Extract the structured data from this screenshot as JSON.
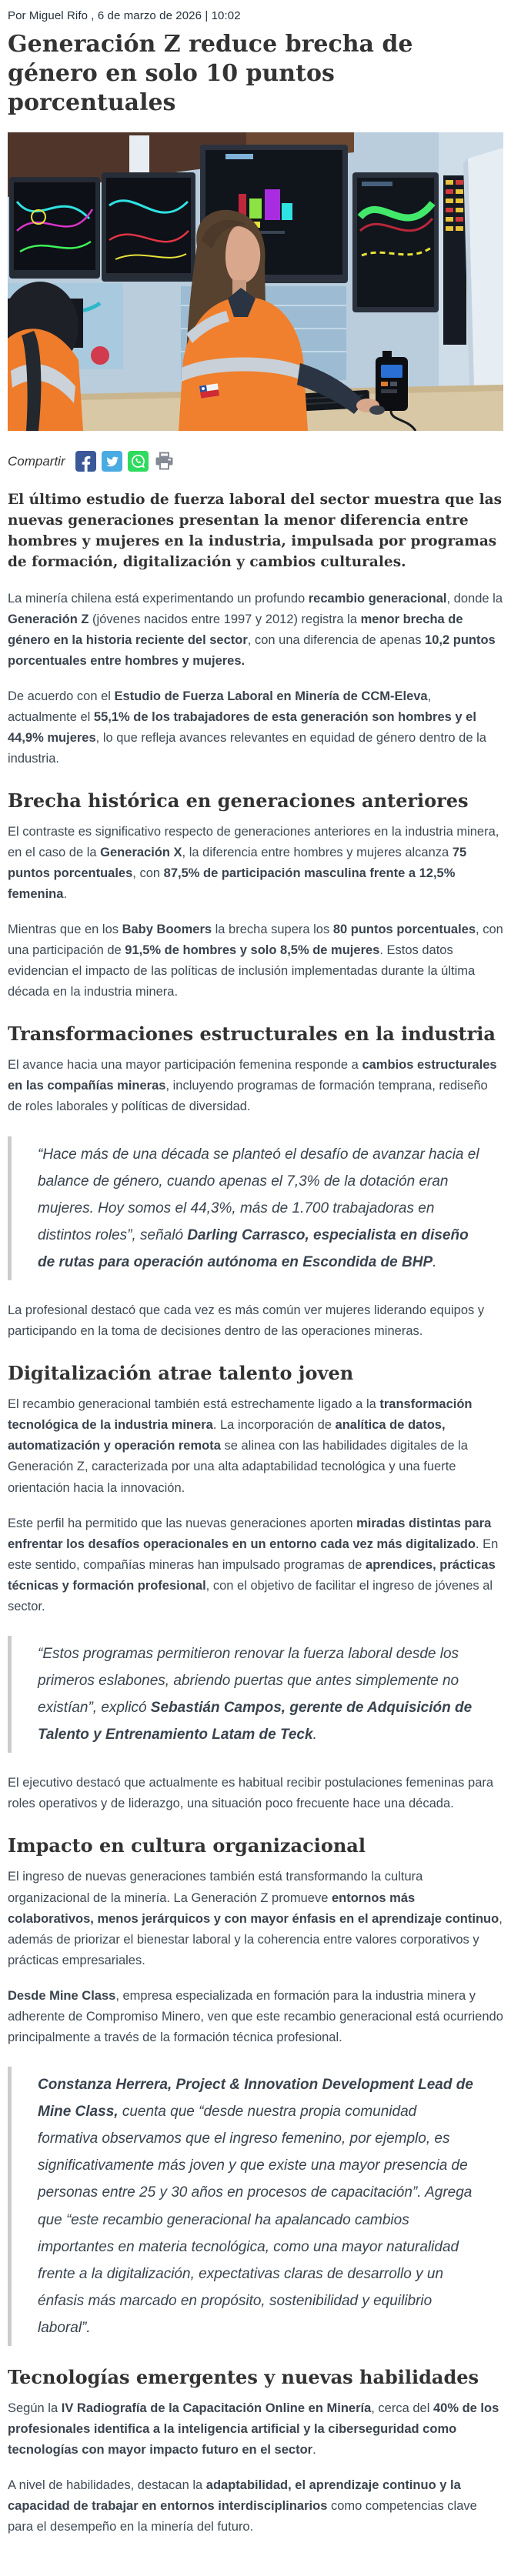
{
  "meta": {
    "byline": "Por Miguel Rifo , 6 de marzo de 2026 | 10:02"
  },
  "share": {
    "label": "Compartir",
    "icons": [
      {
        "name": "facebook",
        "color": "#3b5998"
      },
      {
        "name": "twitter",
        "color": "#4aabe2"
      },
      {
        "name": "whatsapp",
        "color": "#2fdb5e"
      },
      {
        "name": "print",
        "color": "#848a94"
      }
    ]
  },
  "article": {
    "headline": "Generación Z reduce brecha de género en solo 10 puntos porcentuales",
    "hero_image": {
      "description": "Mujer operadora con chaqueta naranja de alta visibilidad y parche de bandera chilena frente a monitores de sala de control minera"
    },
    "lead": "El último estudio de fuerza laboral del sector muestra que las nuevas generaciones presentan la menor diferencia entre hombres y mujeres en la industria, impulsada por programas de formación, digitalización y cambios culturales.",
    "blocks": [
      {
        "type": "p",
        "segments": [
          {
            "t": "La minería chilena está experimentando un profundo "
          },
          {
            "t": "recambio generacional",
            "b": true
          },
          {
            "t": ", donde la "
          },
          {
            "t": "Generación Z",
            "b": true
          },
          {
            "t": " (jóvenes nacidos entre 1997 y 2012) registra la "
          },
          {
            "t": "menor brecha de género en la historia reciente del sector",
            "b": true
          },
          {
            "t": ", con una diferencia de apenas "
          },
          {
            "t": "10,2 puntos porcentuales entre hombres y mujeres.",
            "b": true
          }
        ]
      },
      {
        "type": "p",
        "segments": [
          {
            "t": "De acuerdo con el "
          },
          {
            "t": "Estudio de Fuerza Laboral en Minería de CCM-Eleva",
            "b": true
          },
          {
            "t": ", actualmente el "
          },
          {
            "t": "55,1% de los trabajadores de esta generación son hombres y el 44,9% mujeres",
            "b": true
          },
          {
            "t": ", lo que refleja avances relevantes en equidad de género dentro de la industria."
          }
        ]
      },
      {
        "type": "h2",
        "text": "Brecha histórica en generaciones anteriores"
      },
      {
        "type": "p",
        "segments": [
          {
            "t": "El contraste es significativo respecto de generaciones anteriores en la industria minera, en el caso de la "
          },
          {
            "t": "Generación X",
            "b": true
          },
          {
            "t": ", la diferencia entre hombres y mujeres alcanza "
          },
          {
            "t": "75 puntos porcentuales",
            "b": true
          },
          {
            "t": ", con "
          },
          {
            "t": "87,5% de participación masculina frente a 12,5% femenina",
            "b": true
          },
          {
            "t": "."
          }
        ]
      },
      {
        "type": "p",
        "segments": [
          {
            "t": "Mientras que en los "
          },
          {
            "t": "Baby Boomers",
            "b": true
          },
          {
            "t": " la brecha supera los "
          },
          {
            "t": "80 puntos porcentuales",
            "b": true
          },
          {
            "t": ", con una participación de "
          },
          {
            "t": "91,5% de hombres y solo 8,5% de mujeres",
            "b": true
          },
          {
            "t": ". Estos datos evidencian el impacto de las políticas de inclusión implementadas durante la última década en la industria minera."
          }
        ]
      },
      {
        "type": "h2",
        "text": "Transformaciones estructurales en la industria"
      },
      {
        "type": "p",
        "segments": [
          {
            "t": "El avance hacia una mayor participación femenina responde a "
          },
          {
            "t": "cambios estructurales en las compañías mineras",
            "b": true
          },
          {
            "t": ", incluyendo programas de formación temprana, rediseño de roles laborales y políticas de diversidad."
          }
        ]
      },
      {
        "type": "quote",
        "segments": [
          {
            "t": "“Hace más de una década se planteó el desafío de avanzar hacia el balance de género, cuando apenas el 7,3% de la dotación eran mujeres. Hoy somos el 44,3%, más de 1.700 trabajadoras en distintos roles”, señaló "
          },
          {
            "t": "Darling Carrasco, especialista en diseño de rutas para operación autónoma en Escondida de BHP",
            "b": true
          },
          {
            "t": "."
          }
        ]
      },
      {
        "type": "p",
        "segments": [
          {
            "t": "La profesional destacó que cada vez es más común ver mujeres liderando equipos y participando en la toma de decisiones dentro de las operaciones mineras."
          }
        ]
      },
      {
        "type": "h2",
        "text": "Digitalización atrae talento joven"
      },
      {
        "type": "p",
        "segments": [
          {
            "t": "El recambio generacional también está estrechamente ligado a la "
          },
          {
            "t": "transformación tecnológica de la industria minera",
            "b": true
          },
          {
            "t": ". La incorporación de "
          },
          {
            "t": "analítica de datos, automatización y operación remota",
            "b": true
          },
          {
            "t": " se alinea con las habilidades digitales de la Generación Z, caracterizada por una alta adaptabilidad tecnológica y una fuerte orientación hacia la innovación."
          }
        ]
      },
      {
        "type": "p",
        "segments": [
          {
            "t": "Este perfil ha permitido que las nuevas generaciones aporten "
          },
          {
            "t": "miradas distintas para enfrentar los desafíos operacionales en un entorno cada vez más digitalizado",
            "b": true
          },
          {
            "t": ". En este sentido, compañías mineras han impulsado programas de "
          },
          {
            "t": "aprendices, prácticas técnicas y formación profesional",
            "b": true
          },
          {
            "t": ", con el objetivo de facilitar el ingreso de jóvenes al sector."
          }
        ]
      },
      {
        "type": "quote",
        "segments": [
          {
            "t": "“Estos programas permitieron renovar la fuerza laboral desde los primeros eslabones, abriendo puertas que antes simplemente no existían”, explicó "
          },
          {
            "t": "Sebastián Campos, gerente de Adquisición de Talento y Entrenamiento Latam de Teck",
            "b": true
          },
          {
            "t": "."
          }
        ]
      },
      {
        "type": "p",
        "segments": [
          {
            "t": "El ejecutivo destacó que actualmente es habitual recibir postulaciones femeninas para roles operativos y de liderazgo, una situación poco frecuente hace una década."
          }
        ]
      },
      {
        "type": "h2",
        "text": "Impacto en cultura organizacional"
      },
      {
        "type": "p",
        "segments": [
          {
            "t": "El ingreso de nuevas generaciones también está transformando la cultura organizacional de la minería. La Generación Z promueve "
          },
          {
            "t": "entornos más colaborativos, menos jerárquicos y con mayor énfasis en el aprendizaje continuo",
            "b": true
          },
          {
            "t": ", además de priorizar el bienestar laboral y la coherencia entre valores corporativos y prácticas empresariales."
          }
        ]
      },
      {
        "type": "p",
        "segments": [
          {
            "t": "Desde Mine Class",
            "b": true
          },
          {
            "t": ", empresa especializada en formación para la industria minera y adherente de Compromiso Minero, ven que este recambio generacional está ocurriendo principalmente a través de la formación técnica profesional."
          }
        ]
      },
      {
        "type": "quote",
        "segments": [
          {
            "t": "Constanza Herrera, Project & Innovation Development Lead de Mine Class,",
            "b": true
          },
          {
            "t": " cuenta que “desde nuestra propia comunidad formativa observamos que el ingreso femenino, por ejemplo, es significativamente más joven y que existe una mayor presencia de personas entre 25 y 30 años en procesos de capacitación”. Agrega que “este recambio generacional ha apalancado cambios importantes en materia tecnológica, como una mayor naturalidad frente a la digitalización, expectativas claras de desarrollo y un énfasis más marcado en propósito, sostenibilidad y equilibrio laboral”."
          }
        ]
      },
      {
        "type": "h2",
        "text": "Tecnologías emergentes y nuevas habilidades"
      },
      {
        "type": "p",
        "segments": [
          {
            "t": "Según la "
          },
          {
            "t": "IV Radiografía de la Capacitación Online en Minería",
            "b": true
          },
          {
            "t": ", cerca del "
          },
          {
            "t": "40% de los profesionales identifica a la inteligencia artificial y la ciberseguridad como tecnologías con mayor impacto futuro en el sector",
            "b": true
          },
          {
            "t": "."
          }
        ]
      },
      {
        "type": "p",
        "segments": [
          {
            "t": "A nivel de habilidades, destacan la "
          },
          {
            "t": "adaptabilidad, el aprendizaje continuo y la capacidad de trabajar en entornos interdisciplinarios",
            "b": true
          },
          {
            "t": " como competencias clave para el desempeño en la minería del futuro."
          }
        ]
      }
    ]
  }
}
